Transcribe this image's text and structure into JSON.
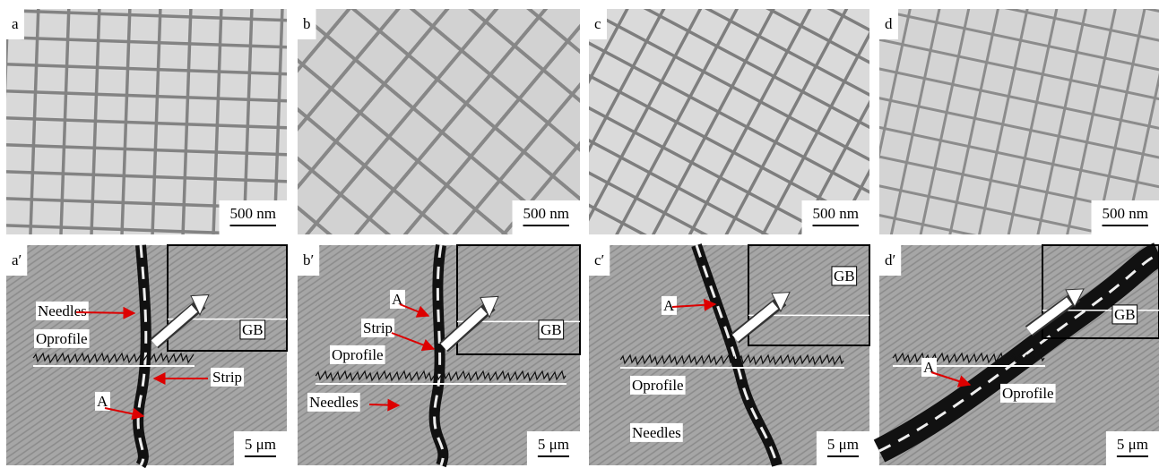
{
  "panels": [
    {
      "label": "a",
      "scale_bar": "500 nm"
    },
    {
      "label": "b",
      "scale_bar": "500 nm"
    },
    {
      "label": "c",
      "scale_bar": "500 nm"
    },
    {
      "label": "d",
      "scale_bar": "500 nm"
    },
    {
      "label": "a′",
      "scale_bar": "5 μm",
      "annotations": [
        "Needles",
        "Oprofile",
        "Strip",
        "A",
        "GB"
      ]
    },
    {
      "label": "b′",
      "scale_bar": "5 μm",
      "annotations": [
        "A",
        "Strip",
        "Oprofile",
        "Needles",
        "GB"
      ]
    },
    {
      "label": "c′",
      "scale_bar": "5 μm",
      "annotations": [
        "A",
        "Oprofile",
        "Needles",
        "GB"
      ]
    },
    {
      "label": "d′",
      "scale_bar": "5 μm",
      "annotations": [
        "A",
        "Oprofile",
        "GB"
      ]
    }
  ]
}
